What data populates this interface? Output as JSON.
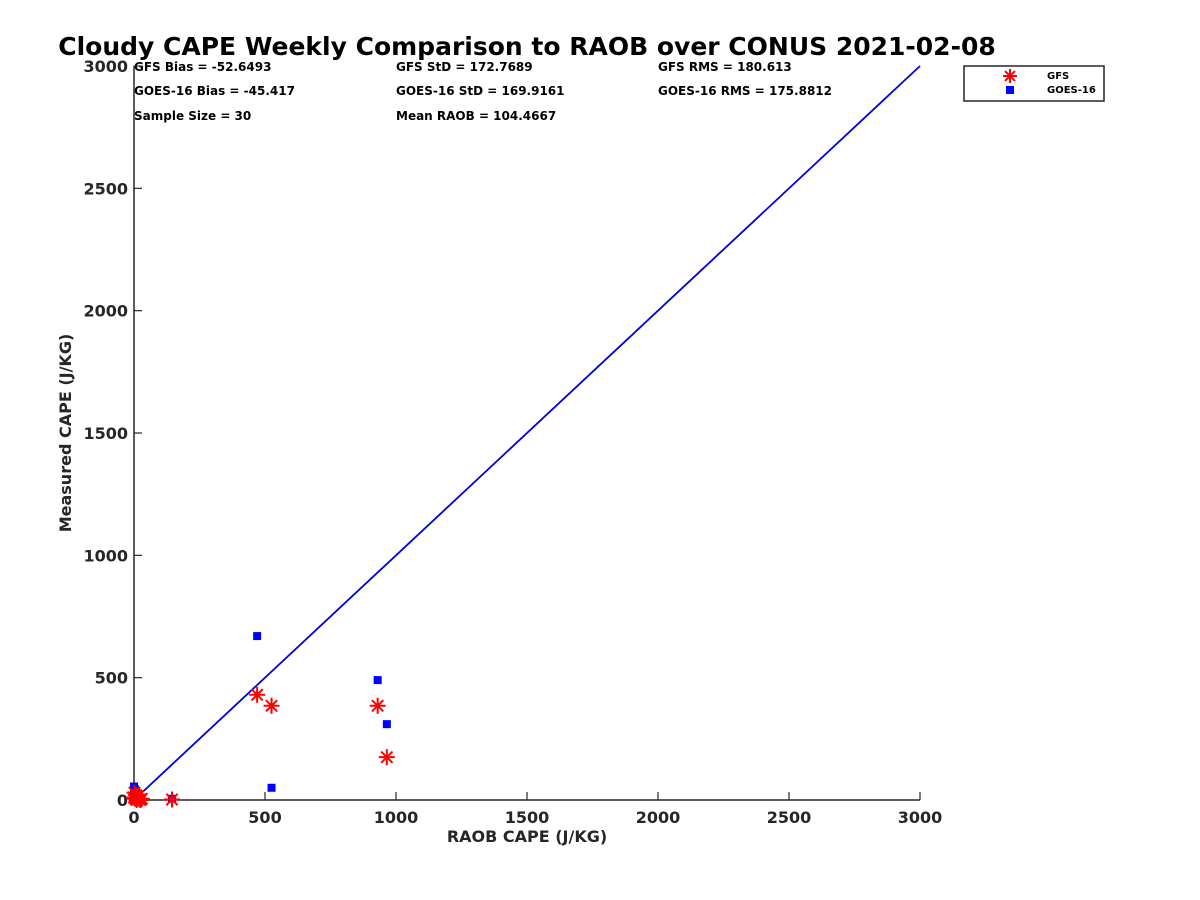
{
  "chart_data": {
    "type": "scatter",
    "title": "Cloudy CAPE Weekly Comparison to RAOB over CONUS 2021-02-08",
    "xlabel": "RAOB CAPE (J/KG)",
    "ylabel": "Measured CAPE (J/KG)",
    "xlim": [
      0,
      3000
    ],
    "ylim": [
      0,
      3000
    ],
    "xticks": [
      0,
      500,
      1000,
      1500,
      2000,
      2500,
      3000
    ],
    "yticks": [
      0,
      500,
      1000,
      1500,
      2000,
      2500,
      3000
    ],
    "xtick_labels": [
      "0",
      "500",
      "1000",
      "1500",
      "2000",
      "2500",
      "3000"
    ],
    "ytick_labels": [
      "0",
      "500",
      "1000",
      "1500",
      "2000",
      "2500",
      "3000"
    ],
    "grid": false,
    "legend_position": "top-right",
    "reference_line": {
      "x": [
        0,
        3000
      ],
      "y": [
        0,
        3000
      ],
      "color": "#0000dd"
    },
    "series": [
      {
        "name": "GFS",
        "marker": "asterisk",
        "color": "#ff0000",
        "x": [
          0,
          2,
          5,
          8,
          10,
          12,
          15,
          20,
          25,
          30,
          145,
          470,
          525,
          930,
          965
        ],
        "y": [
          10,
          30,
          5,
          20,
          0,
          8,
          15,
          3,
          0,
          5,
          2,
          430,
          385,
          385,
          175
        ]
      },
      {
        "name": "GOES-16",
        "marker": "square",
        "color": "#0000ff",
        "x": [
          0,
          0,
          0,
          2,
          3,
          5,
          5,
          8,
          10,
          12,
          15,
          20,
          145,
          470,
          525,
          930,
          965
        ],
        "y": [
          10,
          35,
          55,
          25,
          45,
          0,
          15,
          30,
          5,
          20,
          0,
          10,
          5,
          670,
          50,
          490,
          310
        ]
      }
    ],
    "stats": [
      "GFS Bias = -52.6493",
      "GFS StD = 172.7689",
      "GFS RMS = 180.613",
      "GOES-16 Bias = -45.417",
      "GOES-16 StD = 169.9161",
      "GOES-16 RMS = 175.8812",
      "Sample Size = 30",
      "Mean RAOB = 104.4667"
    ]
  }
}
